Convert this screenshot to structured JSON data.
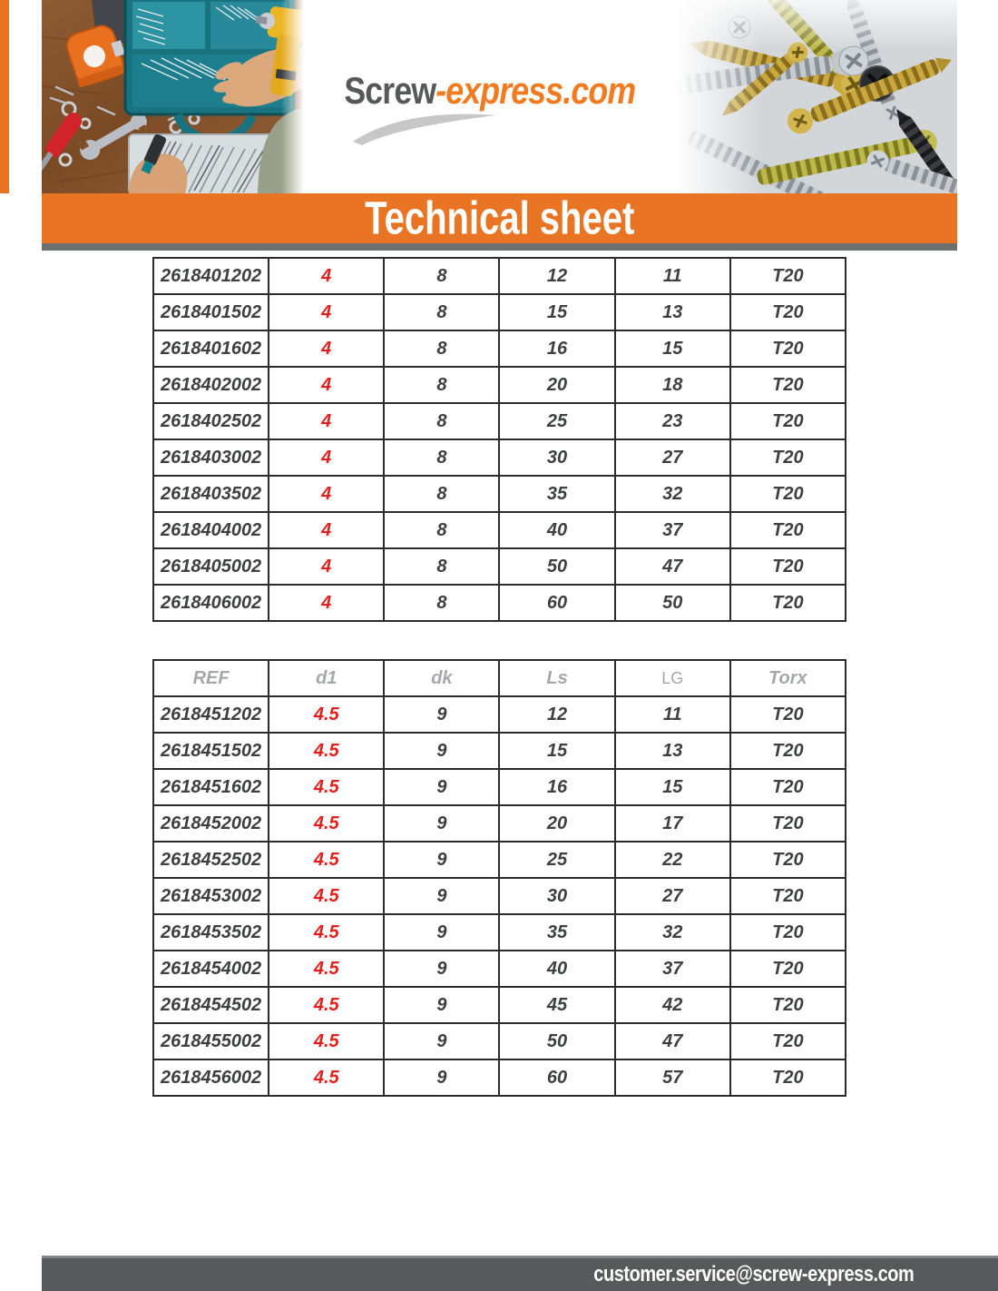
{
  "header": {
    "logo": {
      "prefix": "Screw",
      "suffix": "-express.com"
    },
    "photos": {
      "left": "workbench-with-screw-organizer-photo",
      "right": "pile-of-screws-photo"
    }
  },
  "banner": {
    "title": "Technical sheet"
  },
  "tables": [
    {
      "name": "screws-d4",
      "headers": [],
      "rows": [
        [
          "2618401202",
          "4",
          "8",
          "12",
          "11",
          "T20"
        ],
        [
          "2618401502",
          "4",
          "8",
          "15",
          "13",
          "T20"
        ],
        [
          "2618401602",
          "4",
          "8",
          "16",
          "15",
          "T20"
        ],
        [
          "2618402002",
          "4",
          "8",
          "20",
          "18",
          "T20"
        ],
        [
          "2618402502",
          "4",
          "8",
          "25",
          "23",
          "T20"
        ],
        [
          "2618403002",
          "4",
          "8",
          "30",
          "27",
          "T20"
        ],
        [
          "2618403502",
          "4",
          "8",
          "35",
          "32",
          "T20"
        ],
        [
          "2618404002",
          "4",
          "8",
          "40",
          "37",
          "T20"
        ],
        [
          "2618405002",
          "4",
          "8",
          "50",
          "47",
          "T20"
        ],
        [
          "2618406002",
          "4",
          "8",
          "60",
          "50",
          "T20"
        ]
      ]
    },
    {
      "name": "screws-d4-5",
      "headers": [
        "REF",
        "d1",
        "dk",
        "Ls",
        "LG",
        "Torx"
      ],
      "rows": [
        [
          "2618451202",
          "4.5",
          "9",
          "12",
          "11",
          "T20"
        ],
        [
          "2618451502",
          "4.5",
          "9",
          "15",
          "13",
          "T20"
        ],
        [
          "2618451602",
          "4.5",
          "9",
          "16",
          "15",
          "T20"
        ],
        [
          "2618452002",
          "4.5",
          "9",
          "20",
          "17",
          "T20"
        ],
        [
          "2618452502",
          "4.5",
          "9",
          "25",
          "22",
          "T20"
        ],
        [
          "2618453002",
          "4.5",
          "9",
          "30",
          "27",
          "T20"
        ],
        [
          "2618453502",
          "4.5",
          "9",
          "35",
          "32",
          "T20"
        ],
        [
          "2618454002",
          "4.5",
          "9",
          "40",
          "37",
          "T20"
        ],
        [
          "2618454502",
          "4.5",
          "9",
          "45",
          "42",
          "T20"
        ],
        [
          "2618455002",
          "4.5",
          "9",
          "50",
          "47",
          "T20"
        ],
        [
          "2618456002",
          "4.5",
          "9",
          "60",
          "57",
          "T20"
        ]
      ]
    }
  ],
  "footer": {
    "email": "customer.service@screw-express.com"
  },
  "colors": {
    "accent_orange": "#E97524",
    "banner_shadow_gray": "#6D6E71",
    "footer_gray": "#58595B",
    "table_border": "#2B2B2B",
    "cell_text": "#3E3F41",
    "header_text": "#A5A7AA",
    "highlight_red": "#E3201C",
    "logo_gray": "#57585A",
    "logo_orange": "#F07B21"
  }
}
